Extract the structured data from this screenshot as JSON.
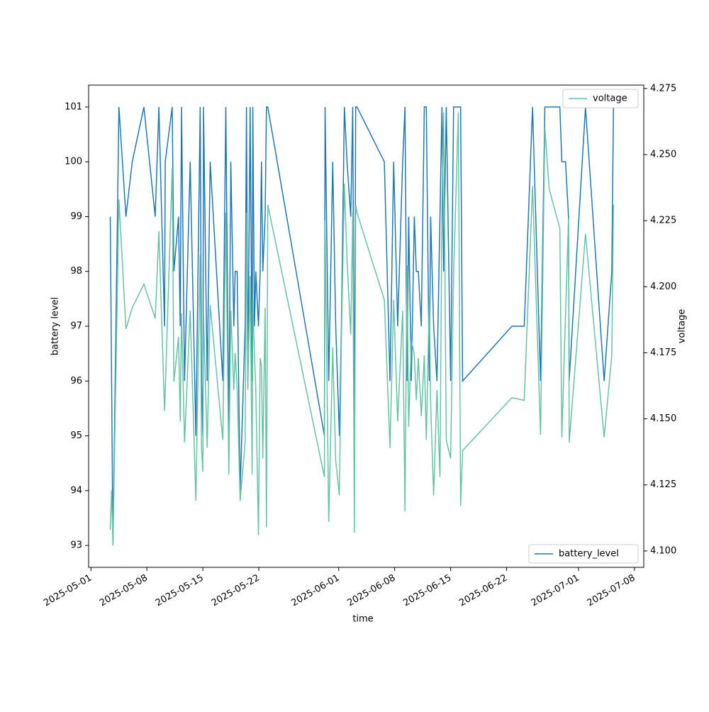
{
  "chart_data": {
    "type": "line",
    "xlabel": "time",
    "ylabel": "battery level",
    "y2label": "voltage",
    "x": [
      "2025-05-03T10:00",
      "2025-05-03T14:00",
      "2025-05-03T18:00",
      "2025-05-04T12:00",
      "2025-05-05T09:00",
      "2025-05-06T04:00",
      "2025-05-07T15:00",
      "2025-05-09T01:00",
      "2025-05-09T12:00",
      "2025-05-10T05:00",
      "2025-05-10T07:00",
      "2025-05-11T04:00",
      "2025-05-11T09:00",
      "2025-05-11T23:00",
      "2025-05-12T04:00",
      "2025-05-12T08:00",
      "2025-05-12T17:00",
      "2025-05-13T10:00",
      "2025-05-14T03:00",
      "2025-05-14T16:00",
      "2025-05-14T20:00",
      "2025-05-15T00:00",
      "2025-05-15T02:00",
      "2025-05-15T13:00",
      "2025-05-15T22:00",
      "2025-05-17T12:00",
      "2025-05-17T21:00",
      "2025-05-18T06:00",
      "2025-05-18T12:00",
      "2025-05-18T21:00",
      "2025-05-19T01:00",
      "2025-05-19T07:00",
      "2025-05-19T16:00",
      "2025-05-20T07:00",
      "2025-05-20T11:00",
      "2025-05-20T15:00",
      "2025-05-20T22:00",
      "2025-05-21T04:00",
      "2025-05-21T06:00",
      "2025-05-21T11:00",
      "2025-05-21T15:00",
      "2025-05-21T23:00",
      "2025-05-22T04:00",
      "2025-05-22T08:00",
      "2025-05-22T12:00",
      "2025-05-22T19:00",
      "2025-05-22T23:00",
      "2025-05-23T03:00",
      "2025-05-30T05:00",
      "2025-05-30T07:00",
      "2025-05-30T18:00",
      "2025-05-31T06:00",
      "2025-05-31T15:00",
      "2025-06-01T02:00",
      "2025-06-01T08:00",
      "2025-06-01T17:00",
      "2025-06-02T01:00",
      "2025-06-02T12:00",
      "2025-06-02T18:00",
      "2025-06-02T23:00",
      "2025-06-03T03:00",
      "2025-06-03T07:00",
      "2025-06-06T17:00",
      "2025-06-07T10:00",
      "2025-06-07T21:00",
      "2025-06-08T09:00",
      "2025-06-09T00:00",
      "2025-06-09T07:00",
      "2025-06-09T13:00",
      "2025-06-09T18:00",
      "2025-06-10T02:00",
      "2025-06-10T11:00",
      "2025-06-10T17:00",
      "2025-06-10T23:00",
      "2025-06-11T08:00",
      "2025-06-11T17:00",
      "2025-06-11T23:00",
      "2025-06-12T08:00",
      "2025-06-12T12:00",
      "2025-06-12T21:00",
      "2025-06-13T07:00",
      "2025-06-13T16:00",
      "2025-06-13T22:00",
      "2025-06-14T03:00",
      "2025-06-14T11:00",
      "2025-06-15T00:00",
      "2025-06-15T09:00",
      "2025-06-15T23:00",
      "2025-06-16T06:00",
      "2025-06-16T12:00",
      "2025-06-22T16:00",
      "2025-06-24T05:00",
      "2025-06-25T06:00",
      "2025-06-26T06:00",
      "2025-06-26T19:00",
      "2025-06-27T08:00",
      "2025-06-28T16:00",
      "2025-06-28T22:00",
      "2025-06-29T09:00",
      "2025-06-29T18:00",
      "2025-06-29T20:00",
      "2025-07-01T21:00",
      "2025-07-04T05:00",
      "2025-07-05T04:00",
      "2025-07-05T09:00"
    ],
    "series": [
      {
        "name": "battery_level",
        "color": "#1f77b4",
        "axis": "y",
        "values": [
          99,
          96,
          93,
          101,
          99,
          100,
          101,
          99,
          101,
          97,
          100,
          101,
          98,
          99,
          97,
          101,
          96,
          100,
          95,
          101,
          96,
          95,
          101,
          96,
          100,
          96,
          101,
          95,
          100,
          97,
          98,
          98,
          94,
          97,
          101,
          96,
          101,
          96,
          101,
          97,
          98,
          97,
          98,
          100,
          98,
          99,
          101,
          101,
          95,
          101,
          96,
          100,
          97,
          95,
          97,
          101,
          100,
          99,
          101,
          95,
          101,
          101,
          100,
          96,
          100,
          97,
          100,
          101,
          96,
          99,
          96,
          99,
          98,
          98,
          97,
          101,
          101,
          96,
          99,
          97,
          96,
          99,
          101,
          98,
          101,
          96,
          101,
          101,
          101,
          96,
          97,
          97,
          101,
          96,
          101,
          101,
          101,
          100,
          100,
          99,
          96,
          101,
          96,
          98,
          101
        ]
      },
      {
        "name": "voltage",
        "color": "#66c2a5",
        "axis": "y2",
        "values": [
          4.108,
          4.123,
          4.102,
          4.233,
          4.184,
          4.192,
          4.201,
          4.188,
          4.221,
          4.153,
          4.16,
          4.245,
          4.164,
          4.181,
          4.149,
          4.19,
          4.141,
          4.191,
          4.119,
          4.212,
          4.139,
          4.13,
          4.19,
          4.139,
          4.193,
          4.142,
          4.228,
          4.129,
          4.191,
          4.161,
          4.175,
          4.162,
          4.119,
          4.141,
          4.228,
          4.161,
          4.204,
          4.129,
          4.195,
          4.175,
          4.161,
          4.106,
          4.173,
          4.17,
          4.135,
          4.192,
          4.109,
          4.231,
          4.128,
          4.225,
          4.111,
          4.177,
          4.134,
          4.121,
          4.18,
          4.239,
          4.21,
          4.182,
          4.228,
          4.107,
          4.231,
          4.228,
          4.195,
          4.139,
          4.195,
          4.149,
          4.191,
          4.115,
          4.208,
          4.147,
          4.18,
          4.174,
          4.157,
          4.173,
          4.151,
          4.174,
          4.142,
          4.196,
          4.156,
          4.121,
          4.161,
          4.128,
          4.23,
          4.266,
          4.142,
          4.135,
          4.204,
          4.266,
          4.117,
          4.138,
          4.158,
          4.157,
          4.238,
          4.144,
          4.26,
          4.237,
          4.222,
          4.143,
          4.189,
          4.226,
          4.141,
          4.22,
          4.143,
          4.174,
          4.231
        ]
      }
    ],
    "xlim": [
      "2025-04-30T17:00",
      "2025-07-09T04:00"
    ],
    "xticks": [
      "2025-05-01",
      "2025-05-08",
      "2025-05-15",
      "2025-05-22",
      "2025-06-01",
      "2025-06-08",
      "2025-06-15",
      "2025-06-22",
      "2025-07-01",
      "2025-07-08"
    ],
    "ylim": [
      92.6,
      101.4
    ],
    "yticks": [
      93,
      94,
      95,
      96,
      97,
      98,
      99,
      100,
      101
    ],
    "y2lim": [
      4.0938,
      4.2763
    ],
    "y2ticks": [
      {
        "value": 4.1,
        "label": "4.100"
      },
      {
        "value": 4.125,
        "label": "4.125"
      },
      {
        "value": 4.15,
        "label": "4.150"
      },
      {
        "value": 4.175,
        "label": "4.175"
      },
      {
        "value": 4.2,
        "label": "4.200"
      },
      {
        "value": 4.225,
        "label": "4.225"
      },
      {
        "value": 4.25,
        "label": "4.250"
      },
      {
        "value": 4.275,
        "label": "4.275"
      }
    ],
    "legend": {
      "y": "lower right",
      "y2": "upper right"
    }
  }
}
